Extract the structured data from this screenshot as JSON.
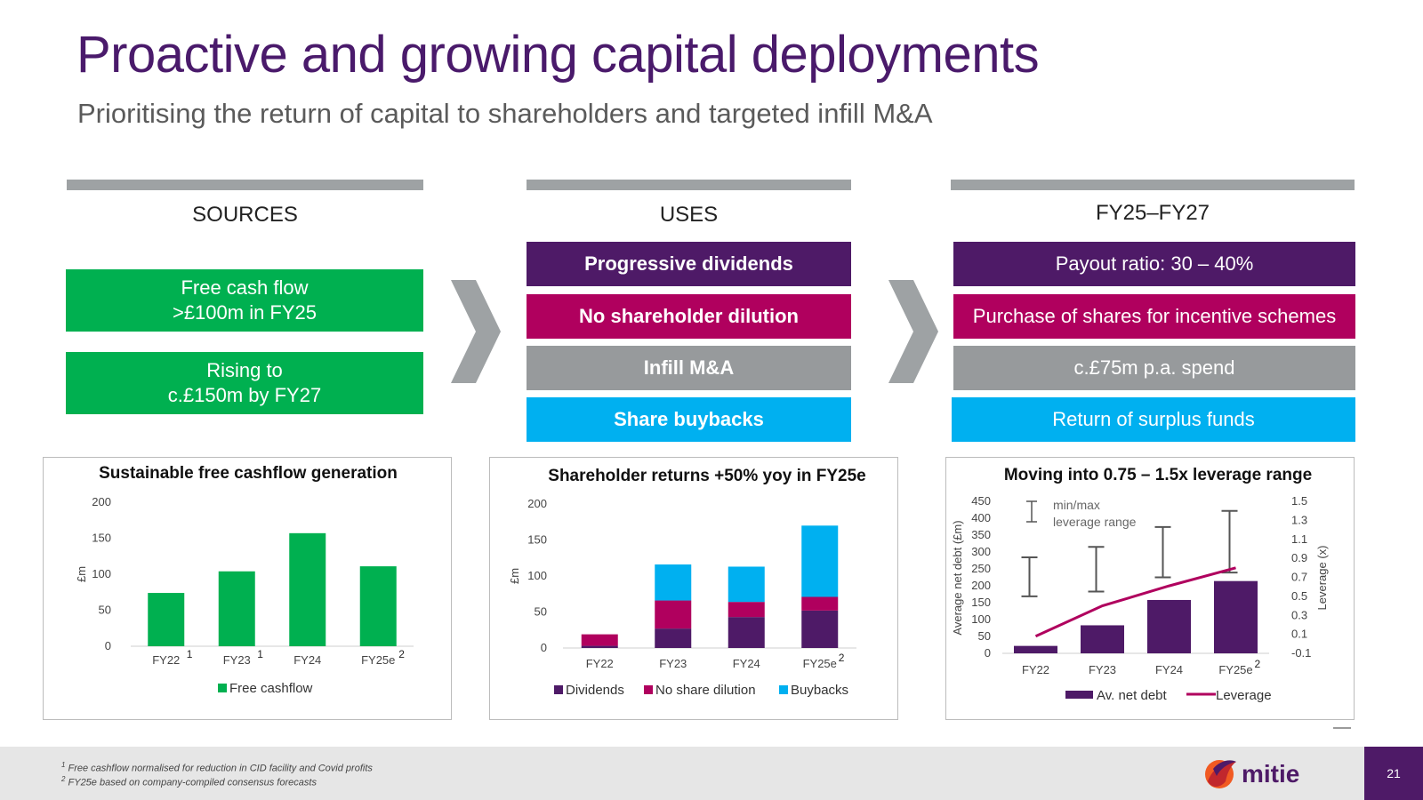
{
  "header": {
    "title": "Proactive and growing capital deployments",
    "subtitle": "Prioritising the return of capital to shareholders and targeted infill M&A"
  },
  "sources": {
    "heading": "SOURCES",
    "box1_line1": "Free cash flow",
    "box1_line2": ">£100m in FY25",
    "box2_line1": "Rising to",
    "box2_line2": "c.£150m by FY27"
  },
  "uses": {
    "heading": "USES",
    "items": [
      "Progressive dividends",
      "No shareholder dilution",
      "Infill M&A",
      "Share buybacks"
    ]
  },
  "targets": {
    "heading": "FY25–FY27",
    "items": [
      "Payout ratio: 30 – 40%",
      "Purchase of shares for incentive schemes",
      "c.£75m p.a. spend",
      "Return of surplus funds"
    ]
  },
  "colors": {
    "purple": "#4e1a67",
    "magenta": "#b0005e",
    "grey": "#979a9c",
    "cyan": "#00b0f0",
    "green": "#00b050",
    "leverage_line": "#b0005e",
    "logo_orange": "#f15a22",
    "logo_red": "#c1272d"
  },
  "chart_data": [
    {
      "type": "bar",
      "title": "Sustainable free cashflow generation",
      "categories": [
        "FY22",
        "FY23",
        "FY24",
        "FY25e"
      ],
      "category_superscripts": [
        "1",
        "1",
        "",
        "2"
      ],
      "ylabel": "£m",
      "ylim": [
        0,
        200
      ],
      "yticks": [
        "0",
        "50",
        "100",
        "150",
        "200"
      ],
      "series": [
        {
          "name": "Free cashflow",
          "values": [
            74,
            104,
            157,
            111
          ]
        }
      ],
      "legend": "bottom"
    },
    {
      "type": "bar",
      "stacked": true,
      "title": "Shareholder returns +50% yoy in FY25e",
      "categories": [
        "FY22",
        "FY23",
        "FY24",
        "FY25e"
      ],
      "category_superscripts": [
        "",
        "",
        "",
        "2"
      ],
      "ylabel": "£m",
      "ylim": [
        0,
        200
      ],
      "yticks": [
        "0",
        "50",
        "100",
        "150",
        "200"
      ],
      "series": [
        {
          "name": "Dividends",
          "values": [
            3,
            27,
            43,
            52
          ]
        },
        {
          "name": "No share dilution",
          "values": [
            16,
            39,
            21,
            19
          ]
        },
        {
          "name": "Buybacks",
          "values": [
            0,
            50,
            49,
            99
          ]
        }
      ],
      "legend": "bottom"
    },
    {
      "type": "bar",
      "combo": "bar+line",
      "title": "Moving into 0.75 – 1.5x leverage range",
      "categories": [
        "FY22",
        "FY23",
        "FY24",
        "FY25e"
      ],
      "category_superscripts": [
        "",
        "",
        "",
        "2"
      ],
      "ylabel": "Average net debt (£m)",
      "y2label": "Leverage (x)",
      "ylim": [
        0,
        450
      ],
      "yticks": [
        "0",
        "50",
        "100",
        "150",
        "200",
        "250",
        "300",
        "350",
        "400",
        "450"
      ],
      "y2lim": [
        -0.1,
        1.5
      ],
      "y2ticks": [
        "-0.1",
        "0.1",
        "0.3",
        "0.5",
        "0.7",
        "0.9",
        "1.1",
        "1.3",
        "1.5"
      ],
      "series": [
        {
          "name": "Av. net debt",
          "type": "bar",
          "values": [
            22,
            83,
            158,
            214
          ]
        },
        {
          "name": "Leverage",
          "type": "line",
          "axis": "y2",
          "values": [
            0.08,
            0.4,
            0.61,
            0.8
          ]
        }
      ],
      "ranges": {
        "name": "min/max\nleverage range",
        "label_line1": "min/max",
        "label_line2": "leverage range",
        "min": [
          0.5,
          0.55,
          0.7,
          0.75
        ],
        "max": [
          0.91,
          1.02,
          1.23,
          1.4
        ]
      },
      "legend": "bottom"
    }
  ],
  "footer": {
    "note1_sup": "1",
    "note1": " Free cashflow normalised for reduction in CID facility and Covid profits",
    "note2_sup": "2",
    "note2": " FY25e based on company-compiled consensus forecasts",
    "logo_text": "mitie",
    "page_number": "21"
  }
}
